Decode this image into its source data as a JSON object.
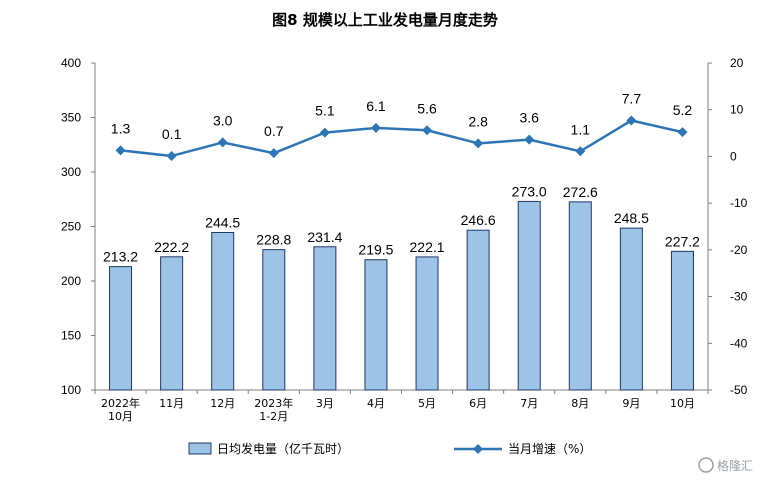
{
  "chart_data": {
    "type": "bar",
    "title": "图8  规模以上工业发电量月度走势",
    "categories": [
      [
        "2022年",
        "10月"
      ],
      [
        "11月"
      ],
      [
        "12月"
      ],
      [
        "2023年",
        "1-2月"
      ],
      [
        "3月"
      ],
      [
        "4月"
      ],
      [
        "5月"
      ],
      [
        "6月"
      ],
      [
        "7月"
      ],
      [
        "8月"
      ],
      [
        "9月"
      ],
      [
        "10月"
      ]
    ],
    "series": [
      {
        "name": "日均发电量（亿千瓦时）",
        "type": "bar",
        "axis": "left",
        "color": "#9DC3E6",
        "edge_color": "#1F3864",
        "values": [
          213.2,
          222.2,
          244.5,
          228.8,
          231.4,
          219.5,
          222.1,
          246.6,
          273.0,
          272.6,
          248.5,
          227.2
        ],
        "labels": [
          "213.2",
          "222.2",
          "244.5",
          "228.8",
          "231.4",
          "219.5",
          "222.1",
          "246.6",
          "273.0",
          "272.6",
          "248.5",
          "227.2"
        ]
      },
      {
        "name": "当月增速（%）",
        "type": "line",
        "axis": "right",
        "color": "#2E75B6",
        "marker": "diamond",
        "values": [
          1.3,
          0.1,
          3.0,
          0.7,
          5.1,
          6.1,
          5.6,
          2.8,
          3.6,
          1.1,
          7.7,
          5.2
        ],
        "labels": [
          "1.3",
          "0.1",
          "3.0",
          "0.7",
          "5.1",
          "6.1",
          "5.6",
          "2.8",
          "3.6",
          "1.1",
          "7.7",
          "5.2"
        ]
      }
    ],
    "y_left": {
      "min": 100,
      "max": 400,
      "ticks": [
        400,
        350,
        300,
        250,
        200,
        150,
        100
      ]
    },
    "y_right": {
      "min": -50,
      "max": 20,
      "ticks": [
        20,
        10,
        0,
        -10,
        -20,
        -30,
        -40,
        -50
      ]
    },
    "grid": false,
    "legend_position": "bottom"
  },
  "watermark": "格隆汇"
}
